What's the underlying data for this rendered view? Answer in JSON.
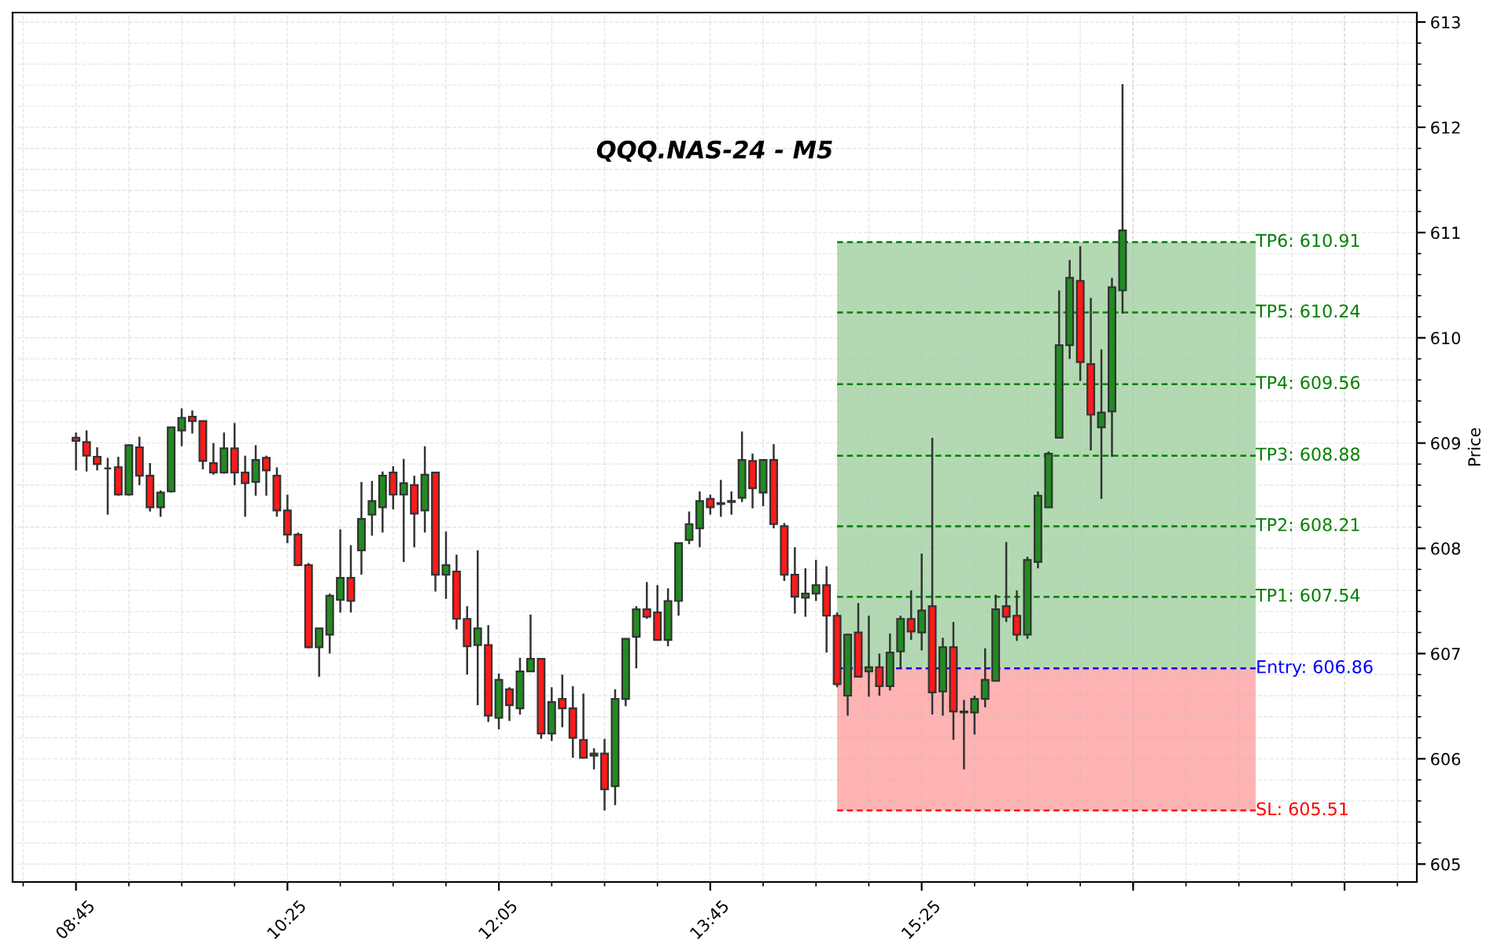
{
  "chart_data": {
    "type": "candlestick",
    "title": "QQQ.NAS-24 - M5",
    "ylabel": "Price",
    "xlim": [
      8.25,
      19.32
    ],
    "ylim": [
      604.83,
      613.09
    ],
    "xticks": [
      {
        "value": 8.75,
        "label": "08:45"
      },
      {
        "value": 10.4167,
        "label": "10:25"
      },
      {
        "value": 12.0833,
        "label": "12:05"
      },
      {
        "value": 13.75,
        "label": "13:45"
      },
      {
        "value": 15.4167,
        "label": "15:25"
      },
      {
        "value": 17.0833,
        "label": null
      },
      {
        "value": 18.75,
        "label": null
      }
    ],
    "yticks": [
      605,
      606,
      607,
      608,
      609,
      610,
      611,
      612,
      613
    ],
    "grid": true,
    "bands": [
      {
        "axis": "y",
        "from": 606.86,
        "to": 610.91,
        "color": "#b3d9b3"
      },
      {
        "axis": "y",
        "from": 605.51,
        "to": 606.86,
        "color": "#ffb3b3"
      }
    ],
    "series": [
      {
        "x": [
          8.75,
          8.8333,
          8.9167,
          9,
          9.0833,
          9.1667,
          9.25,
          9.3333,
          9.4167,
          9.5,
          9.5833,
          9.6667,
          9.75,
          9.8333,
          9.9167,
          10,
          10.0833,
          10.1667,
          10.25,
          10.3333,
          10.4167,
          10.5,
          10.5833,
          10.6667,
          10.75,
          10.8333,
          10.9167,
          11,
          11.0833,
          11.1667,
          11.25,
          11.3333,
          11.4167,
          11.5,
          11.5833,
          11.6667,
          11.75,
          11.8333,
          11.9167,
          12,
          12.0833,
          12.1667,
          12.25,
          12.3333,
          12.4167,
          12.5,
          12.5833,
          12.6667,
          12.75,
          12.8333,
          12.9167,
          13,
          13.0833,
          13.1667,
          13.25,
          13.3333,
          13.4167,
          13.5,
          13.5833,
          13.6667,
          13.75,
          13.8333,
          13.9167,
          14,
          14.0833,
          14.1667,
          14.25,
          14.3333,
          14.4167,
          14.5,
          14.5833,
          14.6667,
          14.75,
          14.8333,
          14.9167,
          15,
          15.0833,
          15.1667,
          15.25,
          15.3333,
          15.4167,
          15.5,
          15.5833,
          15.6667,
          15.75,
          15.8333,
          15.9167,
          16,
          16.0833,
          16.1667,
          16.25,
          16.3333,
          16.4167,
          16.5,
          16.5833,
          16.6667,
          16.75,
          16.8333,
          16.9167,
          17
        ],
        "ohlc": [
          [
            609.05,
            609.1,
            608.74,
            609.02
          ],
          [
            609.01,
            609.12,
            608.73,
            608.88
          ],
          [
            608.87,
            608.96,
            608.74,
            608.8
          ],
          [
            608.76,
            608.86,
            608.32,
            608.76
          ],
          [
            608.77,
            608.87,
            608.5,
            608.51
          ],
          [
            608.51,
            608.99,
            608.5,
            608.98
          ],
          [
            608.96,
            609.06,
            608.6,
            608.69
          ],
          [
            608.69,
            608.81,
            608.35,
            608.39
          ],
          [
            608.39,
            608.55,
            608.3,
            608.53
          ],
          [
            608.54,
            609.15,
            608.53,
            609.15
          ],
          [
            609.12,
            609.33,
            608.97,
            609.24
          ],
          [
            609.25,
            609.31,
            609.09,
            609.21
          ],
          [
            609.21,
            609.21,
            608.75,
            608.83
          ],
          [
            608.81,
            609.0,
            608.7,
            608.72
          ],
          [
            608.72,
            609.1,
            608.71,
            608.95
          ],
          [
            608.95,
            609.19,
            608.6,
            608.72
          ],
          [
            608.72,
            608.88,
            608.3,
            608.62
          ],
          [
            608.63,
            608.98,
            608.5,
            608.84
          ],
          [
            608.86,
            608.88,
            608.5,
            608.74
          ],
          [
            608.69,
            608.77,
            608.3,
            608.36
          ],
          [
            608.36,
            608.51,
            608.05,
            608.13
          ],
          [
            608.13,
            608.15,
            607.83,
            607.84
          ],
          [
            607.84,
            607.86,
            607.05,
            607.06
          ],
          [
            607.06,
            607.24,
            606.78,
            607.24
          ],
          [
            607.18,
            607.57,
            607.0,
            607.55
          ],
          [
            607.51,
            608.18,
            607.39,
            607.72
          ],
          [
            607.72,
            608.03,
            607.39,
            607.5
          ],
          [
            607.98,
            608.63,
            607.75,
            608.28
          ],
          [
            608.32,
            608.64,
            608.12,
            608.45
          ],
          [
            608.39,
            608.73,
            608.15,
            608.69
          ],
          [
            608.72,
            608.78,
            608.37,
            608.51
          ],
          [
            608.51,
            608.85,
            607.87,
            608.62
          ],
          [
            608.6,
            608.69,
            608.01,
            608.33
          ],
          [
            608.36,
            608.97,
            608.15,
            608.7
          ],
          [
            608.72,
            608.72,
            607.59,
            607.75
          ],
          [
            607.75,
            608.16,
            607.52,
            607.84
          ],
          [
            607.78,
            607.94,
            607.23,
            607.33
          ],
          [
            607.33,
            607.45,
            606.8,
            607.07
          ],
          [
            607.08,
            607.98,
            606.51,
            607.24
          ],
          [
            607.08,
            607.27,
            606.35,
            606.41
          ],
          [
            606.39,
            606.81,
            606.28,
            606.75
          ],
          [
            606.66,
            606.68,
            606.36,
            606.51
          ],
          [
            606.48,
            606.96,
            606.42,
            606.83
          ],
          [
            606.83,
            607.37,
            606.83,
            606.95
          ],
          [
            606.95,
            606.95,
            606.19,
            606.24
          ],
          [
            606.24,
            606.68,
            606.17,
            606.54
          ],
          [
            606.57,
            606.8,
            606.3,
            606.48
          ],
          [
            606.48,
            606.69,
            606.01,
            606.2
          ],
          [
            606.18,
            606.62,
            606.01,
            606.01
          ],
          [
            606.03,
            606.1,
            605.9,
            606.05
          ],
          [
            606.05,
            606.19,
            605.51,
            605.71
          ],
          [
            605.74,
            606.66,
            605.56,
            606.57
          ],
          [
            606.57,
            607.14,
            606.5,
            607.14
          ],
          [
            607.16,
            607.45,
            606.86,
            607.42
          ],
          [
            607.42,
            607.68,
            607.33,
            607.35
          ],
          [
            607.39,
            607.65,
            607.13,
            607.13
          ],
          [
            607.13,
            607.62,
            607.07,
            607.5
          ],
          [
            607.5,
            608.05,
            607.36,
            608.05
          ],
          [
            608.08,
            608.35,
            608.04,
            608.23
          ],
          [
            608.19,
            608.54,
            608.01,
            608.45
          ],
          [
            608.47,
            608.51,
            608.32,
            608.39
          ],
          [
            608.42,
            608.65,
            608.3,
            608.43
          ],
          [
            608.44,
            608.54,
            608.32,
            608.45
          ],
          [
            608.48,
            609.11,
            608.44,
            608.84
          ],
          [
            608.83,
            608.9,
            608.38,
            608.57
          ],
          [
            608.53,
            608.84,
            608.4,
            608.84
          ],
          [
            608.84,
            608.99,
            608.19,
            608.23
          ],
          [
            608.21,
            608.24,
            607.69,
            607.75
          ],
          [
            607.75,
            608.01,
            607.38,
            607.54
          ],
          [
            607.53,
            607.81,
            607.35,
            607.57
          ],
          [
            607.57,
            607.89,
            607.5,
            607.65
          ],
          [
            607.65,
            607.83,
            607.01,
            607.36
          ],
          [
            607.36,
            607.39,
            606.68,
            606.71
          ],
          [
            606.6,
            607.19,
            606.41,
            607.18
          ],
          [
            607.2,
            607.48,
            606.78,
            606.78
          ],
          [
            606.83,
            607.36,
            606.59,
            606.87
          ],
          [
            606.87,
            607.0,
            606.6,
            606.69
          ],
          [
            606.69,
            607.19,
            606.65,
            607.01
          ],
          [
            607.02,
            607.36,
            606.86,
            607.33
          ],
          [
            607.33,
            607.6,
            607.13,
            607.21
          ],
          [
            607.2,
            607.95,
            607.03,
            607.41
          ],
          [
            607.45,
            609.05,
            606.42,
            606.63
          ],
          [
            606.64,
            607.15,
            606.41,
            607.06
          ],
          [
            607.06,
            607.3,
            606.18,
            606.45
          ],
          [
            606.45,
            606.56,
            605.9,
            606.44
          ],
          [
            606.44,
            606.6,
            606.23,
            606.57
          ],
          [
            606.57,
            607.05,
            606.49,
            606.75
          ],
          [
            606.74,
            607.56,
            606.74,
            607.42
          ],
          [
            607.45,
            608.06,
            607.3,
            607.35
          ],
          [
            607.36,
            607.6,
            607.12,
            607.18
          ],
          [
            607.18,
            607.92,
            607.14,
            607.89
          ],
          [
            607.87,
            608.54,
            607.81,
            608.5
          ],
          [
            608.39,
            608.92,
            608.39,
            608.9
          ],
          [
            609.05,
            610.45,
            609.05,
            609.93
          ],
          [
            609.93,
            610.74,
            609.8,
            610.57
          ],
          [
            610.54,
            610.87,
            609.59,
            609.77
          ],
          [
            609.75,
            610.38,
            608.93,
            609.27
          ],
          [
            609.15,
            609.89,
            608.47,
            609.29
          ],
          [
            609.3,
            610.57,
            608.87,
            610.48
          ],
          [
            610.45,
            612.41,
            610.23,
            611.02
          ]
        ],
        "colors": [
          "#ff1a1a",
          "#ff1a1a",
          "#ff1a1a",
          "#333333",
          "#ff1a1a",
          "#228b22",
          "#ff1a1a",
          "#ff1a1a",
          "#228b22",
          "#228b22",
          "#228b22",
          "#ff1a1a",
          "#ff1a1a",
          "#ff1a1a",
          "#228b22",
          "#ff1a1a",
          "#ff1a1a",
          "#228b22",
          "#ff1a1a",
          "#ff1a1a",
          "#ff1a1a",
          "#ff1a1a",
          "#ff1a1a",
          "#228b22",
          "#228b22",
          "#228b22",
          "#ff1a1a",
          "#228b22",
          "#228b22",
          "#228b22",
          "#ff1a1a",
          "#228b22",
          "#ff1a1a",
          "#228b22",
          "#ff1a1a",
          "#228b22",
          "#ff1a1a",
          "#ff1a1a",
          "#228b22",
          "#ff1a1a",
          "#228b22",
          "#ff1a1a",
          "#228b22",
          "#228b22",
          "#ff1a1a",
          "#228b22",
          "#ff1a1a",
          "#ff1a1a",
          "#ff1a1a",
          "#228b22",
          "#ff1a1a",
          "#228b22",
          "#228b22",
          "#228b22",
          "#ff1a1a",
          "#ff1a1a",
          "#228b22",
          "#228b22",
          "#228b22",
          "#228b22",
          "#ff1a1a",
          "#228b22",
          "#228b22",
          "#228b22",
          "#ff1a1a",
          "#228b22",
          "#ff1a1a",
          "#ff1a1a",
          "#ff1a1a",
          "#228b22",
          "#228b22",
          "#ff1a1a",
          "#ff1a1a",
          "#228b22",
          "#ff1a1a",
          "#228b22",
          "#ff1a1a",
          "#228b22",
          "#228b22",
          "#ff1a1a",
          "#228b22",
          "#ff1a1a",
          "#228b22",
          "#ff1a1a",
          "#ff1a1a",
          "#228b22",
          "#228b22",
          "#228b22",
          "#ff1a1a",
          "#ff1a1a",
          "#228b22",
          "#228b22",
          "#228b22",
          "#228b22",
          "#228b22",
          "#ff1a1a",
          "#ff1a1a",
          "#228b22",
          "#228b22",
          "#228b22"
        ]
      },
      {
        "type": "line",
        "name": "TP6: 610.91",
        "x": [
          14.75,
          18.05
        ],
        "values": [
          610.91,
          610.91
        ],
        "color": "#008000",
        "line_style": "dashed"
      },
      {
        "type": "line",
        "name": "TP5: 610.24",
        "x": [
          14.75,
          18.05
        ],
        "values": [
          610.24,
          610.24
        ],
        "color": "#008000",
        "line_style": "dashed"
      },
      {
        "type": "line",
        "name": "TP4: 609.56",
        "x": [
          14.75,
          18.05
        ],
        "values": [
          609.56,
          609.56
        ],
        "color": "#008000",
        "line_style": "dashed"
      },
      {
        "type": "line",
        "name": "TP3: 608.88",
        "x": [
          14.75,
          18.05
        ],
        "values": [
          608.88,
          608.88
        ],
        "color": "#008000",
        "line_style": "dashed"
      },
      {
        "type": "line",
        "name": "TP2: 608.21",
        "x": [
          14.75,
          18.05
        ],
        "values": [
          608.21,
          608.21
        ],
        "color": "#008000",
        "line_style": "dashed"
      },
      {
        "type": "line",
        "name": "TP1: 607.54",
        "x": [
          14.75,
          18.05
        ],
        "values": [
          607.54,
          607.54
        ],
        "color": "#008000",
        "line_style": "dashed"
      },
      {
        "type": "line",
        "name": "Entry: 606.86",
        "x": [
          14.75,
          18.05
        ],
        "values": [
          606.86,
          606.86
        ],
        "color": "#0000ff",
        "line_style": "dashed"
      },
      {
        "type": "line",
        "name": "SL: 605.51",
        "x": [
          14.75,
          18.05
        ],
        "values": [
          605.51,
          605.51
        ],
        "color": "#ff0000",
        "line_style": "dashed"
      }
    ]
  }
}
